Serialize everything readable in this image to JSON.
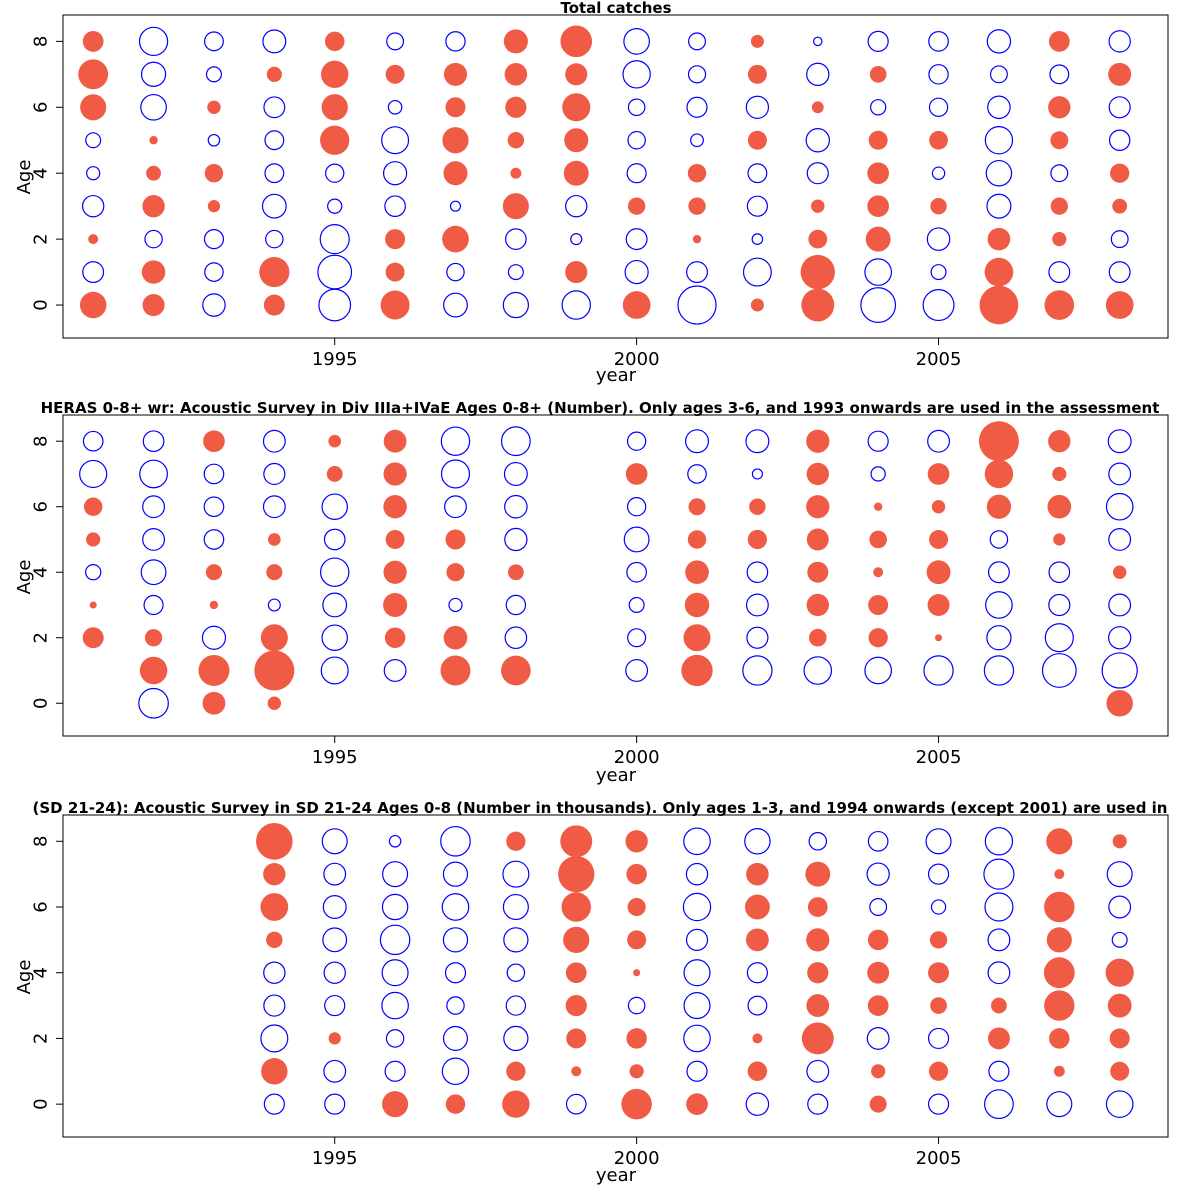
{
  "chart_data": [
    {
      "type": "bubble",
      "title": "Total catches",
      "xlabel": "year",
      "ylabel": "Age",
      "xlim": [
        1990.5,
        2008.8
      ],
      "ylim": [
        -1,
        8.8
      ],
      "xticks": [
        1995,
        2000,
        2005
      ],
      "yticks": [
        0,
        2,
        4,
        6,
        8
      ],
      "positive_color": "#ef5b44",
      "negative_color": "#0000ff",
      "years": [
        1991,
        1992,
        1993,
        1994,
        1995,
        1996,
        1997,
        1998,
        1999,
        2000,
        2001,
        2002,
        2003,
        2004,
        2005,
        2006,
        2007,
        2008
      ],
      "ages": [
        0,
        1,
        2,
        3,
        4,
        5,
        6,
        7,
        8
      ],
      "residuals": [
        [
          0.7,
          0.49,
          -0.5,
          0.44,
          -1.0,
          0.84,
          -0.56,
          -0.63,
          -0.8,
          0.77,
          -1.45,
          0.17,
          1.08,
          -1.2,
          -0.95,
          1.5,
          0.88,
          0.77
        ],
        [
          -0.43,
          0.55,
          -0.34,
          0.91,
          -1.13,
          0.36,
          -0.3,
          -0.22,
          0.49,
          -0.53,
          -0.43,
          -0.77,
          1.18,
          -0.7,
          -0.22,
          0.82,
          -0.43,
          -0.43
        ],
        [
          0.1,
          -0.3,
          -0.36,
          -0.3,
          -0.84,
          0.4,
          0.71,
          -0.42,
          -0.12,
          -0.43,
          0.07,
          -0.11,
          0.35,
          0.62,
          -0.5,
          0.51,
          0.2,
          -0.28
        ],
        [
          -0.45,
          0.5,
          0.15,
          -0.56,
          -0.2,
          -0.42,
          -0.1,
          0.68,
          -0.45,
          0.3,
          0.3,
          -0.4,
          0.18,
          0.47,
          0.27,
          -0.57,
          0.3,
          0.22
        ],
        [
          -0.17,
          0.22,
          0.34,
          -0.35,
          -0.33,
          -0.53,
          0.58,
          0.12,
          0.62,
          -0.36,
          0.34,
          -0.35,
          -0.44,
          0.47,
          -0.15,
          -0.64,
          -0.28,
          0.37
        ],
        [
          -0.22,
          0.07,
          -0.13,
          -0.35,
          0.86,
          -0.72,
          0.69,
          0.27,
          0.58,
          -0.3,
          -0.16,
          0.36,
          -0.54,
          0.36,
          0.35,
          -0.74,
          0.32,
          -0.41
        ],
        [
          0.68,
          -0.65,
          0.18,
          -0.43,
          0.69,
          -0.18,
          0.4,
          0.45,
          0.79,
          -0.27,
          -0.4,
          -0.49,
          0.14,
          -0.23,
          -0.33,
          -0.5,
          0.5,
          -0.44
        ],
        [
          0.89,
          -0.58,
          -0.22,
          0.23,
          0.75,
          0.36,
          0.53,
          0.51,
          0.49,
          -0.74,
          -0.29,
          0.36,
          -0.49,
          0.28,
          -0.37,
          -0.28,
          -0.35,
          0.53
        ],
        [
          0.43,
          -0.79,
          -0.35,
          -0.52,
          0.38,
          -0.28,
          -0.37,
          0.58,
          1.0,
          -0.65,
          -0.28,
          0.17,
          -0.07,
          -0.4,
          -0.38,
          -0.54,
          0.43,
          -0.45
        ]
      ]
    },
    {
      "type": "bubble",
      "title": "HERAS 0-8+ wr: Acoustic Survey in Div IIIa+IVaE Ages 0-8+ (Number). Only ages 3-6, and 1993 onwards are used in the assessment",
      "xlabel": "year",
      "ylabel": "Age",
      "xlim": [
        1990.5,
        2008.8
      ],
      "ylim": [
        -1,
        8.8
      ],
      "xticks": [
        1995,
        2000,
        2005
      ],
      "yticks": [
        0,
        2,
        4,
        6,
        8
      ],
      "positive_color": "#ef5b44",
      "negative_color": "#0000ff",
      "years": [
        1991,
        1992,
        1993,
        1994,
        1995,
        1996,
        1997,
        1998,
        1999,
        2000,
        2001,
        2002,
        2003,
        2004,
        2005,
        2006,
        2007,
        2008
      ],
      "ages": [
        0,
        1,
        2,
        3,
        4,
        5,
        6,
        7,
        8
      ],
      "residuals": [
        [
          null,
          -0.87,
          0.52,
          0.18,
          null,
          null,
          null,
          null,
          null,
          null,
          null,
          null,
          null,
          null,
          null,
          null,
          null,
          0.7
        ],
        [
          null,
          0.76,
          0.96,
          1.6,
          -0.72,
          -0.47,
          0.9,
          0.88,
          null,
          -0.47,
          0.98,
          -0.85,
          -0.75,
          -0.7,
          -0.85,
          -0.85,
          -1.13,
          -1.23
        ],
        [
          0.44,
          0.3,
          -0.53,
          0.73,
          -0.64,
          0.42,
          0.56,
          -0.46,
          null,
          -0.32,
          0.73,
          -0.44,
          0.31,
          0.37,
          0.05,
          -0.58,
          -0.78,
          -0.49
        ],
        [
          0.05,
          -0.36,
          0.07,
          -0.14,
          -0.56,
          0.58,
          -0.17,
          -0.37,
          null,
          -0.22,
          0.6,
          -0.47,
          0.5,
          0.4,
          0.48,
          -0.7,
          -0.44,
          -0.47
        ],
        [
          -0.23,
          -0.61,
          0.26,
          0.26,
          -0.8,
          0.54,
          0.33,
          0.25,
          null,
          -0.38,
          0.56,
          -0.42,
          0.44,
          0.1,
          0.57,
          -0.43,
          -0.42,
          0.18
        ],
        [
          0.2,
          -0.47,
          -0.38,
          0.16,
          -0.42,
          0.36,
          0.4,
          -0.49,
          null,
          -0.61,
          0.34,
          0.37,
          0.48,
          0.31,
          0.36,
          -0.3,
          0.15,
          -0.47
        ],
        [
          0.34,
          -0.47,
          -0.38,
          -0.47,
          -0.64,
          0.55,
          -0.47,
          -0.5,
          null,
          -0.33,
          0.29,
          0.27,
          0.54,
          0.07,
          0.18,
          0.59,
          0.56,
          -0.7
        ],
        [
          -0.73,
          -0.76,
          -0.38,
          -0.44,
          0.25,
          0.54,
          -0.78,
          -0.52,
          null,
          0.47,
          -0.34,
          -0.1,
          0.5,
          -0.2,
          0.47,
          0.81,
          0.2,
          -0.47
        ],
        [
          -0.38,
          -0.42,
          0.47,
          -0.47,
          0.16,
          0.52,
          -0.8,
          -0.82,
          null,
          -0.33,
          -0.52,
          -0.52,
          0.54,
          -0.4,
          -0.47,
          1.6,
          0.5,
          -0.52
        ]
      ]
    },
    {
      "type": "bubble",
      "title": "(SD 21-24): Acoustic Survey in SD 21-24 Ages 0-8 (Number in thousands). Only ages 1-3, and 1994 onwards (except 2001) are used in",
      "xlabel": "year",
      "ylabel": "Age",
      "xlim": [
        1990.5,
        2008.8
      ],
      "ylim": [
        -1,
        8.8
      ],
      "xticks": [
        1995,
        2000,
        2005
      ],
      "yticks": [
        0,
        2,
        4,
        6,
        8
      ],
      "positive_color": "#ef5b44",
      "negative_color": "#0000ff",
      "years": [
        1994,
        1995,
        1996,
        1997,
        1998,
        1999,
        2000,
        2001,
        2002,
        2003,
        2004,
        2005,
        2006,
        2007,
        2008
      ],
      "ages": [
        0,
        1,
        2,
        3,
        4,
        5,
        6,
        7,
        8
      ],
      "residuals": [
        [
          -0.4,
          -0.4,
          0.68,
          0.38,
          0.75,
          -0.38,
          0.93,
          0.47,
          -0.5,
          -0.4,
          0.29,
          -0.4,
          -0.82,
          -0.62,
          -0.7
        ],
        [
          0.7,
          -0.47,
          -0.4,
          -0.69,
          0.37,
          0.1,
          0.2,
          -0.4,
          0.38,
          -0.47,
          0.2,
          0.37,
          -0.4,
          0.12,
          0.36
        ],
        [
          -0.72,
          0.15,
          -0.3,
          -0.57,
          -0.58,
          0.4,
          0.42,
          -0.7,
          0.1,
          1.02,
          -0.47,
          -0.4,
          0.48,
          0.42,
          0.4
        ],
        [
          -0.44,
          -0.4,
          -0.7,
          -0.3,
          -0.37,
          0.45,
          -0.27,
          -0.67,
          -0.35,
          0.52,
          0.43,
          0.28,
          0.25,
          0.92,
          0.57
        ],
        [
          -0.45,
          -0.45,
          -0.67,
          -0.4,
          -0.3,
          0.43,
          0.05,
          -0.67,
          -0.4,
          0.45,
          0.48,
          0.44,
          -0.47,
          0.95,
          0.8
        ],
        [
          0.27,
          -0.56,
          -0.86,
          -0.58,
          -0.58,
          0.69,
          0.36,
          -0.44,
          0.52,
          0.54,
          0.42,
          0.3,
          -0.47,
          0.63,
          -0.22
        ],
        [
          0.77,
          -0.52,
          -0.64,
          -0.7,
          -0.62,
          0.87,
          0.33,
          -0.74,
          0.62,
          0.39,
          -0.28,
          -0.2,
          -0.78,
          0.93,
          -0.47
        ],
        [
          0.5,
          -0.47,
          -0.62,
          -0.58,
          -0.67,
          1.32,
          0.42,
          -0.45,
          0.51,
          0.62,
          -0.49,
          -0.4,
          -0.9,
          0.1,
          -0.62
        ],
        [
          1.34,
          -0.62,
          -0.13,
          -0.87,
          0.37,
          1.02,
          0.5,
          -0.7,
          -0.64,
          -0.3,
          -0.38,
          -0.62,
          -0.74,
          0.68,
          0.2
        ]
      ]
    }
  ]
}
